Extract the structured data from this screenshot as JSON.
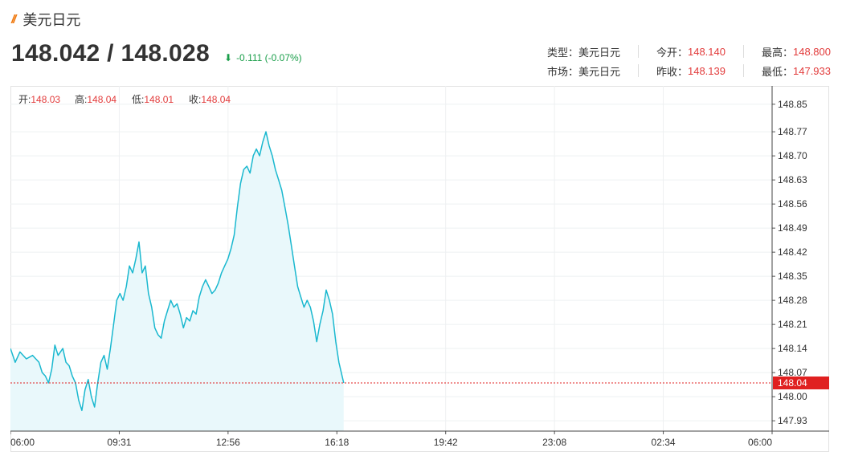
{
  "header": {
    "title_icon": "double-slash-icon",
    "title": "美元日元",
    "price": "148.042 / 148.028",
    "change_icon": "arrow-down-icon",
    "change": "-0.111 (-0.07%)",
    "change_color": "#1a9e4a"
  },
  "info": {
    "type_label": "类型：",
    "type_value": "美元日元",
    "market_label": "市场：",
    "market_value": "美元日元",
    "open_label": "今开：",
    "open_value": "148.140",
    "prev_close_label": "昨收：",
    "prev_close_value": "148.139",
    "high_label": "最高：",
    "high_value": "148.800",
    "low_label": "最低：",
    "low_value": "147.933",
    "value_color": "#e23b3b"
  },
  "ohlc": {
    "open_label": "开:",
    "open_value": "148.03",
    "high_label": "高:",
    "high_value": "148.04",
    "low_label": "低:",
    "low_value": "148.01",
    "close_label": "收:",
    "close_value": "148.04"
  },
  "chart_data": {
    "type": "area",
    "x_ticks": [
      "06:00",
      "09:31",
      "12:56",
      "16:18",
      "19:42",
      "23:08",
      "02:34",
      "06:00"
    ],
    "y_ticks": [
      "148.85",
      "148.77",
      "148.70",
      "148.63",
      "148.56",
      "148.49",
      "148.42",
      "148.35",
      "148.28",
      "148.21",
      "148.14",
      "148.07",
      "148.00",
      "147.93"
    ],
    "ylim": [
      147.9,
      148.88
    ],
    "x_range_hours": [
      0,
      24
    ],
    "current_price_label": "148.04",
    "current_price": 148.04,
    "line_color": "#1ab8cf",
    "fill_color": "#e9f8fb",
    "current_price_color": "#e02020",
    "grid": true,
    "series": [
      {
        "points": [
          [
            0.0,
            148.14
          ],
          [
            0.15,
            148.1
          ],
          [
            0.3,
            148.13
          ],
          [
            0.5,
            148.11
          ],
          [
            0.7,
            148.12
          ],
          [
            0.9,
            148.1
          ],
          [
            1.0,
            148.07
          ],
          [
            1.1,
            148.06
          ],
          [
            1.2,
            148.04
          ],
          [
            1.3,
            148.08
          ],
          [
            1.4,
            148.15
          ],
          [
            1.5,
            148.12
          ],
          [
            1.65,
            148.14
          ],
          [
            1.75,
            148.1
          ],
          [
            1.85,
            148.09
          ],
          [
            1.95,
            148.06
          ],
          [
            2.05,
            148.04
          ],
          [
            2.15,
            147.99
          ],
          [
            2.25,
            147.96
          ],
          [
            2.35,
            148.02
          ],
          [
            2.45,
            148.05
          ],
          [
            2.55,
            148.0
          ],
          [
            2.65,
            147.97
          ],
          [
            2.75,
            148.04
          ],
          [
            2.85,
            148.1
          ],
          [
            2.95,
            148.12
          ],
          [
            3.05,
            148.08
          ],
          [
            3.15,
            148.14
          ],
          [
            3.25,
            148.21
          ],
          [
            3.35,
            148.28
          ],
          [
            3.45,
            148.3
          ],
          [
            3.55,
            148.28
          ],
          [
            3.65,
            148.32
          ],
          [
            3.75,
            148.38
          ],
          [
            3.85,
            148.36
          ],
          [
            3.95,
            148.4
          ],
          [
            4.05,
            148.45
          ],
          [
            4.15,
            148.36
          ],
          [
            4.25,
            148.38
          ],
          [
            4.35,
            148.3
          ],
          [
            4.45,
            148.26
          ],
          [
            4.55,
            148.2
          ],
          [
            4.65,
            148.18
          ],
          [
            4.75,
            148.17
          ],
          [
            4.85,
            148.22
          ],
          [
            4.95,
            148.25
          ],
          [
            5.05,
            148.28
          ],
          [
            5.15,
            148.26
          ],
          [
            5.25,
            148.27
          ],
          [
            5.35,
            148.24
          ],
          [
            5.45,
            148.2
          ],
          [
            5.55,
            148.23
          ],
          [
            5.65,
            148.22
          ],
          [
            5.75,
            148.25
          ],
          [
            5.85,
            148.24
          ],
          [
            5.95,
            148.29
          ],
          [
            6.05,
            148.32
          ],
          [
            6.15,
            148.34
          ],
          [
            6.25,
            148.32
          ],
          [
            6.35,
            148.3
          ],
          [
            6.45,
            148.31
          ],
          [
            6.55,
            148.33
          ],
          [
            6.65,
            148.36
          ],
          [
            6.75,
            148.38
          ],
          [
            6.85,
            148.4
          ],
          [
            6.95,
            148.43
          ],
          [
            7.05,
            148.47
          ],
          [
            7.15,
            148.55
          ],
          [
            7.25,
            148.62
          ],
          [
            7.35,
            148.66
          ],
          [
            7.45,
            148.67
          ],
          [
            7.55,
            148.65
          ],
          [
            7.65,
            148.7
          ],
          [
            7.75,
            148.72
          ],
          [
            7.85,
            148.7
          ],
          [
            7.95,
            148.74
          ],
          [
            8.05,
            148.77
          ],
          [
            8.15,
            148.73
          ],
          [
            8.25,
            148.7
          ],
          [
            8.35,
            148.66
          ],
          [
            8.45,
            148.63
          ],
          [
            8.55,
            148.6
          ],
          [
            8.65,
            148.55
          ],
          [
            8.75,
            148.5
          ],
          [
            8.85,
            148.44
          ],
          [
            8.95,
            148.38
          ],
          [
            9.05,
            148.32
          ],
          [
            9.15,
            148.29
          ],
          [
            9.25,
            148.26
          ],
          [
            9.35,
            148.28
          ],
          [
            9.45,
            148.26
          ],
          [
            9.55,
            148.22
          ],
          [
            9.65,
            148.16
          ],
          [
            9.75,
            148.21
          ],
          [
            9.85,
            148.25
          ],
          [
            9.95,
            148.31
          ],
          [
            10.05,
            148.28
          ],
          [
            10.15,
            148.24
          ],
          [
            10.25,
            148.16
          ],
          [
            10.35,
            148.1
          ],
          [
            10.45,
            148.06
          ],
          [
            10.5,
            148.04
          ]
        ]
      }
    ]
  }
}
